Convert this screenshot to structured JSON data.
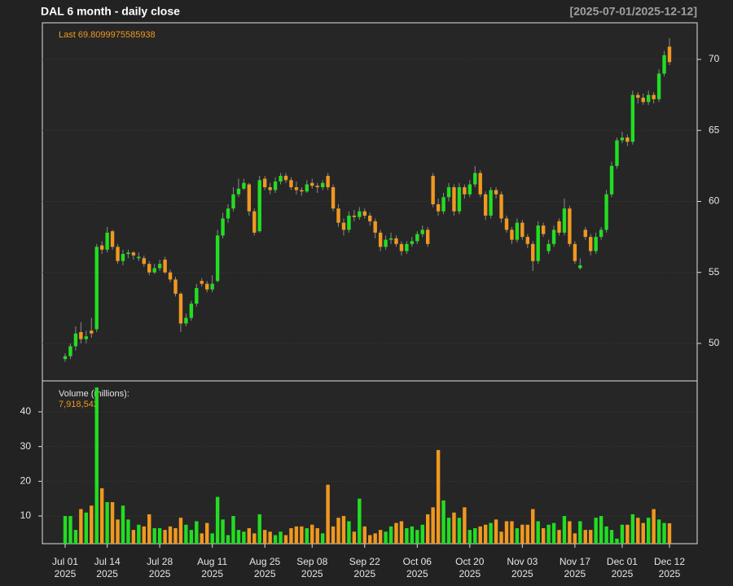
{
  "chart_data": [
    {
      "type": "candlestick",
      "title": "DAL  6 month - daily close",
      "subtitle": "[2025-07-01/2025-12-12]",
      "last_label": "Last 69.8099975585938",
      "x": [
        "2025-07-01",
        "2025-07-02",
        "2025-07-03",
        "2025-07-07",
        "2025-07-08",
        "2025-07-09",
        "2025-07-10",
        "2025-07-11",
        "2025-07-14",
        "2025-07-15",
        "2025-07-16",
        "2025-07-17",
        "2025-07-18",
        "2025-07-21",
        "2025-07-22",
        "2025-07-23",
        "2025-07-24",
        "2025-07-25",
        "2025-07-28",
        "2025-07-29",
        "2025-07-30",
        "2025-07-31",
        "2025-08-01",
        "2025-08-04",
        "2025-08-05",
        "2025-08-06",
        "2025-08-07",
        "2025-08-08",
        "2025-08-11",
        "2025-08-12",
        "2025-08-13",
        "2025-08-14",
        "2025-08-15",
        "2025-08-18",
        "2025-08-19",
        "2025-08-20",
        "2025-08-21",
        "2025-08-22",
        "2025-08-25",
        "2025-08-26",
        "2025-08-27",
        "2025-08-28",
        "2025-08-29",
        "2025-09-02",
        "2025-09-03",
        "2025-09-04",
        "2025-09-05",
        "2025-09-08",
        "2025-09-09",
        "2025-09-10",
        "2025-09-11",
        "2025-09-12",
        "2025-09-15",
        "2025-09-16",
        "2025-09-17",
        "2025-09-18",
        "2025-09-19",
        "2025-09-22",
        "2025-09-23",
        "2025-09-24",
        "2025-09-25",
        "2025-09-26",
        "2025-09-29",
        "2025-09-30",
        "2025-10-01",
        "2025-10-02",
        "2025-10-03",
        "2025-10-06",
        "2025-10-07",
        "2025-10-08",
        "2025-10-09",
        "2025-10-10",
        "2025-10-13",
        "2025-10-14",
        "2025-10-15",
        "2025-10-16",
        "2025-10-17",
        "2025-10-20",
        "2025-10-21",
        "2025-10-22",
        "2025-10-23",
        "2025-10-24",
        "2025-10-27",
        "2025-10-28",
        "2025-10-29",
        "2025-10-30",
        "2025-10-31",
        "2025-11-03",
        "2025-11-04",
        "2025-11-05",
        "2025-11-06",
        "2025-11-07",
        "2025-11-10",
        "2025-11-11",
        "2025-11-12",
        "2025-11-13",
        "2025-11-14",
        "2025-11-17",
        "2025-11-18",
        "2025-11-19",
        "2025-11-20",
        "2025-11-21",
        "2025-11-24",
        "2025-11-25",
        "2025-11-26",
        "2025-11-28",
        "2025-12-01",
        "2025-12-02",
        "2025-12-03",
        "2025-12-04",
        "2025-12-05",
        "2025-12-08",
        "2025-12-09",
        "2025-12-10",
        "2025-12-11",
        "2025-12-12"
      ],
      "open": [
        48.9,
        49.1,
        49.8,
        50.8,
        50.3,
        50.9,
        51.0,
        56.9,
        56.6,
        57.9,
        56.8,
        55.8,
        56.3,
        56.4,
        56.0,
        56.0,
        55.6,
        55.0,
        55.3,
        55.9,
        55.0,
        54.5,
        53.5,
        51.4,
        51.8,
        52.8,
        54.4,
        54.2,
        53.8,
        54.4,
        57.6,
        58.8,
        59.5,
        60.5,
        60.9,
        61.2,
        59.3,
        57.9,
        61.6,
        61.0,
        60.8,
        61.4,
        61.8,
        61.5,
        61.0,
        60.8,
        60.7,
        61.3,
        61.1,
        61.0,
        61.8,
        61.0,
        59.5,
        58.5,
        58.0,
        59.0,
        58.9,
        59.3,
        59.0,
        58.6,
        57.8,
        56.8,
        57.3,
        57.4,
        57.0,
        56.5,
        57.0,
        57.2,
        57.7,
        58.0,
        61.8,
        59.8,
        59.3,
        60.3,
        61.0,
        59.3,
        61.0,
        60.5,
        61.2,
        62.0,
        60.5,
        59.0,
        60.8,
        60.5,
        58.8,
        58.0,
        57.3,
        58.5,
        57.5,
        57.0,
        55.8,
        58.3,
        56.5,
        57.0,
        58.6,
        57.8,
        59.5,
        57.0,
        55.3,
        58.0,
        57.5,
        56.5,
        57.5,
        58.0,
        60.5,
        62.5,
        64.3,
        64.5,
        64.2,
        67.5,
        67.3,
        67.0,
        67.5,
        67.2,
        69.0,
        70.9
      ],
      "high": [
        49.3,
        50.0,
        51.2,
        51.5,
        50.9,
        51.8,
        57.0,
        57.2,
        58.2,
        58.0,
        57.0,
        56.6,
        56.6,
        56.5,
        56.4,
        56.2,
        55.8,
        55.6,
        55.9,
        56.1,
        55.2,
        54.7,
        53.6,
        52.1,
        53.0,
        54.2,
        54.6,
        54.4,
        54.8,
        58.0,
        59.2,
        59.8,
        61.0,
        61.6,
        61.6,
        61.3,
        59.5,
        61.8,
        61.8,
        61.3,
        61.7,
        62.0,
        62.0,
        61.7,
        61.4,
        61.0,
        61.5,
        61.6,
        61.3,
        61.5,
        62.0,
        61.2,
        59.8,
        58.8,
        59.3,
        59.4,
        59.6,
        59.5,
        59.2,
        58.8,
        58.0,
        57.6,
        57.8,
        57.6,
        57.2,
        57.2,
        57.5,
        57.9,
        58.3,
        58.2,
        62.0,
        60.2,
        60.6,
        61.3,
        61.2,
        61.3,
        61.2,
        61.5,
        62.5,
        62.2,
        60.7,
        61.0,
        61.0,
        60.7,
        59.0,
        58.2,
        58.8,
        58.7,
        57.7,
        57.2,
        58.6,
        58.5,
        57.3,
        58.3,
        58.8,
        60.2,
        59.7,
        57.2,
        56.0,
        58.2,
        57.7,
        57.8,
        58.2,
        60.8,
        62.8,
        64.5,
        64.9,
        64.7,
        67.8,
        67.7,
        67.6,
        67.8,
        67.7,
        69.3,
        70.6,
        71.5
      ],
      "low": [
        48.7,
        48.9,
        49.5,
        50.0,
        50.0,
        50.4,
        50.8,
        56.3,
        56.4,
        56.6,
        55.6,
        55.5,
        56.0,
        55.9,
        55.8,
        55.4,
        54.8,
        54.9,
        55.1,
        54.9,
        54.3,
        53.3,
        50.8,
        51.2,
        51.6,
        52.6,
        54.0,
        53.6,
        53.6,
        54.3,
        57.4,
        58.5,
        59.3,
        60.3,
        60.8,
        59.0,
        57.6,
        57.8,
        60.8,
        60.5,
        60.6,
        61.2,
        61.3,
        60.8,
        60.5,
        60.4,
        60.6,
        60.9,
        60.6,
        60.8,
        60.8,
        59.3,
        58.2,
        57.6,
        57.8,
        58.6,
        58.7,
        58.8,
        58.3,
        57.4,
        56.5,
        56.6,
        57.0,
        56.8,
        56.2,
        56.3,
        56.8,
        57.0,
        57.5,
        56.8,
        59.6,
        59.0,
        59.1,
        60.0,
        59.0,
        59.1,
        60.2,
        60.3,
        61.0,
        60.3,
        58.7,
        58.8,
        60.2,
        58.5,
        57.8,
        57.0,
        57.1,
        57.3,
        56.7,
        55.1,
        55.6,
        57.5,
        56.3,
        56.8,
        57.6,
        57.6,
        56.8,
        55.6,
        55.2,
        57.3,
        56.2,
        56.3,
        57.3,
        57.8,
        60.3,
        62.3,
        64.1,
        63.9,
        64.0,
        66.9,
        66.8,
        66.8,
        66.9,
        67.0,
        68.8,
        69.6
      ],
      "close": [
        49.1,
        49.8,
        50.7,
        50.3,
        50.5,
        50.7,
        56.8,
        56.6,
        57.8,
        56.8,
        55.8,
        56.3,
        56.4,
        56.2,
        56.1,
        55.6,
        55.0,
        55.3,
        55.6,
        55.0,
        54.5,
        53.5,
        51.4,
        51.8,
        52.8,
        53.9,
        54.2,
        53.8,
        54.2,
        57.6,
        58.8,
        59.5,
        60.5,
        60.9,
        61.3,
        59.3,
        57.8,
        61.5,
        61.0,
        60.8,
        61.4,
        61.8,
        61.5,
        61.0,
        60.8,
        60.7,
        61.2,
        61.1,
        61.0,
        61.3,
        61.0,
        59.5,
        58.5,
        58.0,
        59.0,
        58.9,
        59.3,
        59.0,
        58.6,
        57.8,
        56.8,
        57.3,
        57.4,
        57.0,
        56.5,
        57.0,
        57.2,
        57.7,
        58.0,
        57.0,
        59.8,
        59.3,
        60.3,
        61.0,
        59.3,
        61.0,
        60.5,
        61.2,
        62.0,
        60.5,
        59.0,
        60.8,
        60.5,
        58.8,
        58.0,
        57.3,
        58.5,
        57.5,
        57.0,
        55.8,
        58.3,
        57.7,
        57.0,
        58.0,
        57.8,
        59.5,
        57.0,
        55.8,
        55.5,
        57.5,
        56.5,
        57.5,
        58.0,
        60.5,
        62.5,
        64.3,
        64.5,
        64.2,
        67.5,
        67.3,
        67.0,
        67.5,
        67.2,
        69.0,
        70.3,
        69.8099975585938
      ],
      "up_color": "#22dd22",
      "down_color": "#f0981f",
      "ylim": [
        47.36,
        72.58
      ],
      "yticks": [
        50,
        55,
        60,
        65,
        70
      ],
      "grid": true,
      "xticks": [
        {
          "value": "2025-07-01",
          "label": [
            "Jul 01",
            "2025"
          ]
        },
        {
          "value": "2025-07-14",
          "label": [
            "Jul 14",
            "2025"
          ]
        },
        {
          "value": "2025-07-28",
          "label": [
            "Jul 28",
            "2025"
          ]
        },
        {
          "value": "2025-08-11",
          "label": [
            "Aug 11",
            "2025"
          ]
        },
        {
          "value": "2025-08-25",
          "label": [
            "Aug 25",
            "2025"
          ]
        },
        {
          "value": "2025-09-08",
          "label": [
            "Sep 08",
            "2025"
          ]
        },
        {
          "value": "2025-09-22",
          "label": [
            "Sep 22",
            "2025"
          ]
        },
        {
          "value": "2025-10-06",
          "label": [
            "Oct 06",
            "2025"
          ]
        },
        {
          "value": "2025-10-20",
          "label": [
            "Oct 20",
            "2025"
          ]
        },
        {
          "value": "2025-11-03",
          "label": [
            "Nov 03",
            "2025"
          ]
        },
        {
          "value": "2025-11-17",
          "label": [
            "Nov 17",
            "2025"
          ]
        },
        {
          "value": "2025-12-01",
          "label": [
            "Dec 01",
            "2025"
          ]
        },
        {
          "value": "2025-12-12",
          "label": [
            "Dec 12",
            "2025"
          ]
        }
      ]
    },
    {
      "type": "bar",
      "title": "Volume (millions):",
      "last_label": "7,918,542",
      "values": [
        10,
        10,
        6,
        12,
        11,
        13,
        47,
        18,
        14,
        14,
        9,
        13,
        9,
        6,
        7.5,
        7,
        10.5,
        6.5,
        6.5,
        6,
        7,
        6.5,
        9.5,
        7.5,
        6,
        8.5,
        5,
        8,
        5,
        15.5,
        9,
        4.5,
        10,
        6,
        5.5,
        6.5,
        5,
        10.5,
        6,
        5.5,
        4.5,
        5.5,
        4.5,
        6.5,
        7,
        7,
        6.5,
        7.5,
        6.5,
        5,
        19,
        7,
        9.5,
        10,
        8.5,
        5.5,
        15,
        7,
        4.5,
        5,
        6,
        5.5,
        7,
        8,
        8.5,
        6.5,
        7,
        6,
        7.5,
        10.5,
        12.5,
        29,
        14.5,
        9.5,
        11,
        9.5,
        12.5,
        6,
        6.5,
        7,
        7.5,
        8,
        9,
        5.5,
        8.5,
        8.5,
        6.5,
        7.5,
        7.5,
        12,
        8.5,
        6.5,
        7.5,
        8,
        6,
        10,
        8.5,
        5,
        8.5,
        6,
        6,
        9.5,
        10,
        7,
        6,
        3.5,
        7.5,
        7.5,
        10.5,
        9.5,
        8,
        9.5,
        12,
        9,
        8,
        7.918542
      ],
      "ylim": [
        2.04,
        48.9
      ],
      "yticks": [
        10,
        20,
        30,
        40
      ],
      "grid": true
    }
  ]
}
